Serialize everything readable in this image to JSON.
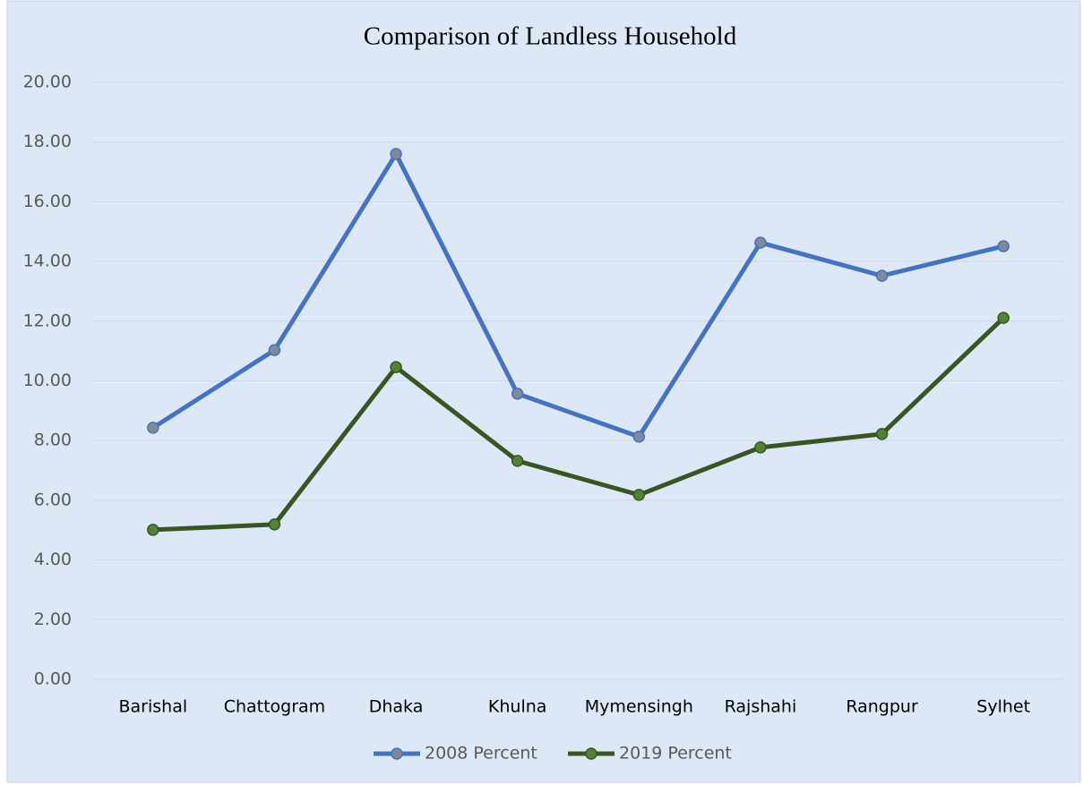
{
  "chart_data": {
    "type": "line",
    "title": "Comparison of Landless Household",
    "categories": [
      "Barishal",
      "Chattogram",
      "Dhaka",
      "Khulna",
      "Mymensingh",
      "Rajshahi",
      "Rangpur",
      "Sylhet"
    ],
    "series": [
      {
        "name": "2008 Percent",
        "color": "#4472c4",
        "marker_color": "#7f8a99",
        "values": [
          8.43,
          11.03,
          17.6,
          9.57,
          8.13,
          14.63,
          13.52,
          14.51
        ]
      },
      {
        "name": "2019 Percent",
        "color": "#375623",
        "marker_color": "#548235",
        "values": [
          5.01,
          5.19,
          10.46,
          7.32,
          6.18,
          7.77,
          8.22,
          12.11
        ]
      }
    ],
    "ylim": [
      0,
      20
    ],
    "yticks": [
      {
        "value": 0,
        "label": "0.00"
      },
      {
        "value": 2,
        "label": "2.00"
      },
      {
        "value": 4,
        "label": "4.00"
      },
      {
        "value": 6,
        "label": "6.00"
      },
      {
        "value": 8,
        "label": "8.00"
      },
      {
        "value": 10,
        "label": "10.00"
      },
      {
        "value": 12,
        "label": "12.00"
      },
      {
        "value": 14,
        "label": "14.00"
      },
      {
        "value": 16,
        "label": "16.00"
      },
      {
        "value": 18,
        "label": "18.00"
      },
      {
        "value": 20,
        "label": "20.00"
      }
    ],
    "grid": true,
    "legend": "bottom"
  }
}
